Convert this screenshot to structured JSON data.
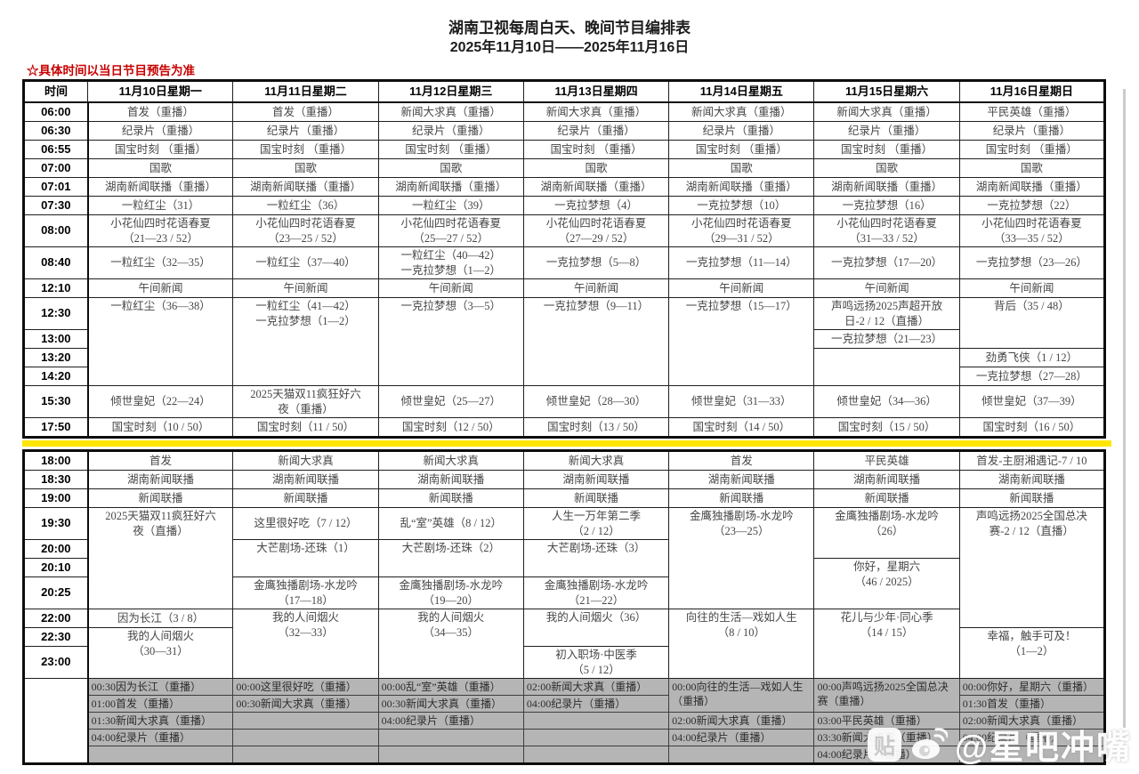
{
  "header": {
    "title": "湖南卫视每周白天、晚间节目编排表",
    "date_range": "2025年11月10日——2025年11月16日",
    "note": "☆具体时间以当日节目预告为准"
  },
  "colors": {
    "note_red": "#c80000",
    "divider_yellow": "#ffe600",
    "overnight_gray": "#b5b5b5"
  },
  "table": {
    "time_header": "时间",
    "days": [
      "11月10日星期一",
      "11月11日星期二",
      "11月12日星期三",
      "11月13日星期四",
      "11月14日星期五",
      "11月15日星期六",
      "11月16日星期日"
    ],
    "day_rows": [
      {
        "time": "06:00",
        "cells": [
          {
            "t": "首发（重播）"
          },
          {
            "t": "首发（重播）"
          },
          {
            "t": "新闻大求真（重播）"
          },
          {
            "t": "新闻大求真（重播）"
          },
          {
            "t": "新闻大求真（重播）"
          },
          {
            "t": "新闻大求真（重播）"
          },
          {
            "t": "平民英雄（重播）"
          }
        ]
      },
      {
        "time": "06:30",
        "cells": [
          {
            "t": "纪录片（重播）"
          },
          {
            "t": "纪录片（重播）"
          },
          {
            "t": "纪录片（重播）"
          },
          {
            "t": "纪录片（重播）"
          },
          {
            "t": "纪录片（重播）"
          },
          {
            "t": "纪录片（重播）"
          },
          {
            "t": "纪录片（重播）"
          }
        ]
      },
      {
        "time": "06:55",
        "cells": [
          {
            "t": "国宝时刻 （重播）"
          },
          {
            "t": "国宝时刻 （重播）"
          },
          {
            "t": "国宝时刻 （重播）"
          },
          {
            "t": "国宝时刻 （重播）"
          },
          {
            "t": "国宝时刻 （重播）"
          },
          {
            "t": "国宝时刻 （重播）"
          },
          {
            "t": "国宝时刻 （重播）"
          }
        ]
      },
      {
        "time": "07:00",
        "cells": [
          {
            "t": "国歌"
          },
          {
            "t": "国歌"
          },
          {
            "t": "国歌"
          },
          {
            "t": "国歌"
          },
          {
            "t": "国歌"
          },
          {
            "t": "国歌"
          },
          {
            "t": "国歌"
          }
        ]
      },
      {
        "time": "07:01",
        "cells": [
          {
            "t": "湖南新闻联播（重播）"
          },
          {
            "t": "湖南新闻联播（重播）"
          },
          {
            "t": "湖南新闻联播（重播）"
          },
          {
            "t": "湖南新闻联播（重播）"
          },
          {
            "t": "湖南新闻联播（重播）"
          },
          {
            "t": "湖南新闻联播（重播）"
          },
          {
            "t": "湖南新闻联播（重播）"
          }
        ]
      },
      {
        "time": "07:30",
        "cells": [
          {
            "t": "一粒红尘（31）"
          },
          {
            "t": "一粒红尘（36）"
          },
          {
            "t": "一粒红尘（39）"
          },
          {
            "t": "一克拉梦想（4）"
          },
          {
            "t": "一克拉梦想（10）"
          },
          {
            "t": "一克拉梦想（16）"
          },
          {
            "t": "一克拉梦想（22）"
          }
        ]
      },
      {
        "time": "08:00",
        "cells": [
          {
            "t": "小花仙四时花语春夏\n（21—23 / 52）"
          },
          {
            "t": "小花仙四时花语春夏\n（23—25 / 52）"
          },
          {
            "t": "小花仙四时花语春夏\n（25—27 / 52）"
          },
          {
            "t": "小花仙四时花语春夏\n（27—29 / 52）"
          },
          {
            "t": "小花仙四时花语春夏\n（29—31 / 52）"
          },
          {
            "t": "小花仙四时花语春夏\n（31—33 / 52）"
          },
          {
            "t": "小花仙四时花语春夏\n（33—35 / 52）"
          }
        ]
      },
      {
        "time": "08:40",
        "cells": [
          {
            "t": "一粒红尘（32—35）"
          },
          {
            "t": "一粒红尘（37—40）"
          },
          {
            "t": "一粒红尘（40—42）\n一克拉梦想（1—2）"
          },
          {
            "t": "一克拉梦想（5—8）"
          },
          {
            "t": "一克拉梦想（11—14）"
          },
          {
            "t": "一克拉梦想（17—20）"
          },
          {
            "t": "一克拉梦想（23—26）"
          }
        ]
      },
      {
        "time": "12:10",
        "cells": [
          {
            "t": "午间新闻"
          },
          {
            "t": "午间新闻"
          },
          {
            "t": "午间新闻"
          },
          {
            "t": "午间新闻"
          },
          {
            "t": "午间新闻"
          },
          {
            "t": "午间新闻"
          },
          {
            "t": "午间新闻"
          }
        ]
      },
      {
        "time": "12:30",
        "cells": [
          {
            "t": "一粒红尘（36—38）",
            "rs": 4
          },
          {
            "t": "一粒红尘（41—42）\n一克拉梦想（1—2）",
            "rs": 4
          },
          {
            "t": "一克拉梦想（3—5）",
            "rs": 4
          },
          {
            "t": "一克拉梦想（9—11）",
            "rs": 4
          },
          {
            "t": "一克拉梦想（15—17）",
            "rs": 4
          },
          {
            "t": "声鸣远扬2025声超开放\n日-2 / 12（直播）"
          },
          {
            "t": "背后（35 / 48）",
            "rs": 2
          }
        ]
      },
      {
        "time": "13:00",
        "cells": [
          {
            "t": "一克拉梦想（21—23）"
          }
        ]
      },
      {
        "time": "13:20",
        "cells": [
          {
            "t": "",
            "rs": 2
          },
          {
            "t": "劲勇飞侠（1 / 12）"
          }
        ]
      },
      {
        "time": "14:20",
        "cells": [
          {
            "t": "一克拉梦想（27—28）"
          }
        ]
      },
      {
        "time": "15:30",
        "cells": [
          {
            "t": "倾世皇妃（22—24）"
          },
          {
            "t": "2025天猫双11疯狂好六\n夜（重播）"
          },
          {
            "t": "倾世皇妃（25—27）"
          },
          {
            "t": "倾世皇妃（28—30）"
          },
          {
            "t": "倾世皇妃（31—33）"
          },
          {
            "t": "倾世皇妃（34—36）"
          },
          {
            "t": "倾世皇妃（37—39）"
          }
        ]
      },
      {
        "time": "17:50",
        "cells": [
          {
            "t": "国宝时刻（10 / 50）"
          },
          {
            "t": "国宝时刻（11 / 50）"
          },
          {
            "t": "国宝时刻（12 / 50）"
          },
          {
            "t": "国宝时刻（13 / 50）"
          },
          {
            "t": "国宝时刻（14 / 50）"
          },
          {
            "t": "国宝时刻（15 / 50）"
          },
          {
            "t": "国宝时刻（16 / 50）"
          }
        ]
      }
    ],
    "evening_rows": [
      {
        "time": "18:00",
        "cells": [
          {
            "t": "首发"
          },
          {
            "t": "新闻大求真"
          },
          {
            "t": "新闻大求真"
          },
          {
            "t": "新闻大求真"
          },
          {
            "t": "首发"
          },
          {
            "t": "平民英雄"
          },
          {
            "t": "首发-主厨湘遇记-7 / 10"
          }
        ]
      },
      {
        "time": "18:30",
        "cells": [
          {
            "t": "湖南新闻联播"
          },
          {
            "t": "湖南新闻联播"
          },
          {
            "t": "湖南新闻联播"
          },
          {
            "t": "湖南新闻联播"
          },
          {
            "t": "湖南新闻联播"
          },
          {
            "t": "湖南新闻联播"
          },
          {
            "t": "湖南新闻联播"
          }
        ]
      },
      {
        "time": "19:00",
        "cells": [
          {
            "t": "新闻联播"
          },
          {
            "t": "新闻联播"
          },
          {
            "t": "新闻联播"
          },
          {
            "t": "新闻联播"
          },
          {
            "t": "新闻联播"
          },
          {
            "t": "新闻联播"
          },
          {
            "t": "新闻联播"
          }
        ]
      },
      {
        "time": "19:30",
        "cells": [
          {
            "t": "2025天猫双11疯狂好六\n夜（直播）",
            "rs": 4
          },
          {
            "t": "这里很好吃（7 / 12）"
          },
          {
            "t": "乱“室”英雄（8 / 12）"
          },
          {
            "t": "人生一万年第二季\n（2 / 12）"
          },
          {
            "t": "金鹰独播剧场-水龙吟\n（23—25）",
            "rs": 4
          },
          {
            "t": "金鹰独播剧场-水龙吟\n（26）",
            "rs": 2
          },
          {
            "t": "声鸣远扬2025全国总决\n赛-2 / 12（直播）",
            "rs": 5
          }
        ]
      },
      {
        "time": "20:00",
        "cells": [
          {
            "t": "大芒剧场-还珠（1）",
            "rs": 2
          },
          {
            "t": "大芒剧场-还珠（2）",
            "rs": 2
          },
          {
            "t": "大芒剧场-还珠（3）",
            "rs": 2
          }
        ]
      },
      {
        "time": "20:10",
        "cells": [
          {
            "t": "你好，星期六\n（46 / 2025）",
            "rs": 2
          }
        ]
      },
      {
        "time": "20:25",
        "cells": [
          {
            "t": "金鹰独播剧场-水龙吟\n（17—18）"
          },
          {
            "t": "金鹰独播剧场-水龙吟\n（19—20）"
          },
          {
            "t": "金鹰独播剧场-水龙吟\n（21—22）"
          }
        ]
      },
      {
        "time": "22:00",
        "cells": [
          {
            "t": "因为长江（3 / 8）"
          },
          {
            "t": "我的人间烟火\n（32—33）",
            "rs": 3
          },
          {
            "t": "我的人间烟火\n（34—35）",
            "rs": 3
          },
          {
            "t": "我的人间烟火（36）",
            "rs": 2
          },
          {
            "t": "向往的生活—戏如人生\n（8 / 10）",
            "rs": 3
          },
          {
            "t": "花儿与少年·同心季\n（14 / 15）",
            "rs": 3
          }
        ]
      },
      {
        "time": "22:30",
        "cells": [
          {
            "t": "我的人间烟火\n（30—31）",
            "rs": 2
          },
          {
            "t": "幸福，触手可及！\n（1—2）",
            "rs": 2
          }
        ]
      },
      {
        "time": "23:00",
        "cells": [
          {
            "t": "初入职场·中医季\n（5 / 12）"
          }
        ]
      }
    ],
    "overnight_rows": [
      {
        "timeSpan": 5,
        "cells": [
          {
            "t": "00:30因为长江（重播）"
          },
          {
            "t": "00:00这里很好吃（重播）"
          },
          {
            "t": "00:00乱“室”英雄（重播）"
          },
          {
            "t": "02:00新闻大求真（重播）"
          },
          {
            "t": "00:00向往的生活—戏如人生（重播）",
            "rs": 2
          },
          {
            "t": "00:00声鸣远扬2025全国总决赛（重播）",
            "rs": 2
          },
          {
            "t": "00:00你好，星期六（重播）"
          }
        ]
      },
      {
        "cells": [
          {
            "t": "01:00首发（重播）"
          },
          {
            "t": "00:30新闻大求真（重播）"
          },
          {
            "t": "00:30新闻大求真（重播）"
          },
          {
            "t": "04:00纪录片（重播）"
          },
          {
            "t": "01:30首发（重播）"
          }
        ]
      },
      {
        "cells": [
          {
            "t": "01:30新闻大求真（重播）"
          },
          {
            "t": ""
          },
          {
            "t": "04:00纪录片（重播）"
          },
          {
            "t": ""
          },
          {
            "t": "02:00新闻大求真（重播）"
          },
          {
            "t": "03:00平民英雄（重播）"
          },
          {
            "t": "02:00新闻大求真（重播）"
          }
        ]
      },
      {
        "cells": [
          {
            "t": "04:00纪录片（重播）"
          },
          {
            "t": ""
          },
          {
            "t": ""
          },
          {
            "t": ""
          },
          {
            "t": "04:00纪录片（重播）"
          },
          {
            "t": "03:30新闻大求真（重播）"
          },
          {
            "t": "04:00纪录片（重播）"
          }
        ]
      },
      {
        "cells": [
          {
            "t": ""
          },
          {
            "t": ""
          },
          {
            "t": ""
          },
          {
            "t": ""
          },
          {
            "t": ""
          },
          {
            "t": "04:00纪录片（重播）"
          },
          {
            "t": ""
          }
        ]
      }
    ]
  },
  "watermark": {
    "text": "@星吧冲嘴",
    "icons": [
      "tieba-icon",
      "weibo-icon"
    ]
  }
}
